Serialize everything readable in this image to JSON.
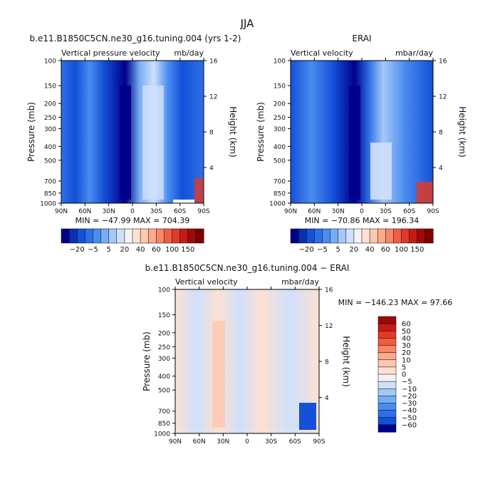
{
  "page_title": "JJA",
  "chart_data": [
    {
      "type": "heatmap",
      "title": "b.e11.B1850C5CN.ne30_g16.tuning.004 (yrs 1-2)",
      "subtitle_left": "Vertical pressure velocity",
      "subtitle_right": "mb/day",
      "xlabel": "",
      "ylabel": "Pressure (mb)",
      "y2label": "Height (km)",
      "x_ticks": [
        "90N",
        "60N",
        "30N",
        "0",
        "30S",
        "60S",
        "90S"
      ],
      "y_ticks": [
        "100",
        "150",
        "200",
        "250",
        "300",
        "400",
        "500",
        "700",
        "850",
        "1000"
      ],
      "y2_ticks": [
        "16",
        "12",
        "8",
        "4"
      ],
      "stats": "MIN = −47.99   MAX = 704.39",
      "min": -47.99,
      "max": 704.39,
      "colorbar": {
        "orientation": "horizontal",
        "labels": [
          "−20",
          "−5",
          "5",
          "20",
          "40",
          "60",
          "100",
          "150"
        ],
        "levels": [
          -40,
          -30,
          -20,
          -15,
          -10,
          -5,
          -2,
          2,
          5,
          10,
          20,
          30,
          40,
          50,
          60,
          80,
          100,
          120,
          150
        ],
        "colors": [
          "#00008b",
          "#0a2fb0",
          "#1450d8",
          "#2e6fe8",
          "#4a8cf0",
          "#76aef5",
          "#a6c8f8",
          "#cfe0fb",
          "#f2f2f2",
          "#fde1d2",
          "#fcc8b0",
          "#fbab8c",
          "#f7866a",
          "#ef5e44",
          "#e03a28",
          "#c41c14",
          "#a00a0a",
          "#800000"
        ]
      },
      "series_description": "Time-mean vertical velocity cross-section"
    },
    {
      "type": "heatmap",
      "title": "ERAI",
      "subtitle_left": "Vertical velocity",
      "subtitle_right": "mbar/day",
      "xlabel": "",
      "ylabel": "Pressure (mb)",
      "y2label": "Height (km)",
      "x_ticks": [
        "90N",
        "60N",
        "30N",
        "0",
        "30S",
        "60S",
        "90S"
      ],
      "y_ticks": [
        "100",
        "150",
        "200",
        "250",
        "300",
        "400",
        "500",
        "700",
        "850",
        "1000"
      ],
      "y2_ticks": [
        "16",
        "12",
        "8",
        "4"
      ],
      "stats": "MIN = −70.86   MAX = 196.34",
      "min": -70.86,
      "max": 196.34,
      "colorbar": {
        "orientation": "horizontal",
        "labels": [
          "−20",
          "−5",
          "5",
          "20",
          "40",
          "60",
          "100",
          "150"
        ],
        "colors": [
          "#00008b",
          "#0a2fb0",
          "#1450d8",
          "#2e6fe8",
          "#4a8cf0",
          "#76aef5",
          "#a6c8f8",
          "#cfe0fb",
          "#f2f2f2",
          "#fde1d2",
          "#fcc8b0",
          "#fbab8c",
          "#f7866a",
          "#ef5e44",
          "#e03a28",
          "#c41c14",
          "#a00a0a",
          "#800000"
        ]
      }
    },
    {
      "type": "heatmap",
      "title": "b.e11.B1850C5CN.ne30_g16.tuning.004 − ERAI",
      "subtitle_left": "Vertical velocity",
      "subtitle_right": "mbar/day",
      "xlabel": "",
      "ylabel": "Pressure (mb)",
      "y2label": "Height (km)",
      "x_ticks": [
        "90N",
        "60N",
        "30N",
        "0",
        "30S",
        "60S",
        "90S"
      ],
      "y_ticks": [
        "100",
        "150",
        "200",
        "250",
        "300",
        "400",
        "500",
        "700",
        "850",
        "1000"
      ],
      "y2_ticks": [
        "16",
        "12",
        "8",
        "4"
      ],
      "stats": "MIN = −146.23   MAX =  97.66",
      "min": -146.23,
      "max": 97.66,
      "colorbar": {
        "orientation": "vertical",
        "labels": [
          "60",
          "50",
          "40",
          "30",
          "20",
          "10",
          "5",
          "0",
          "−5",
          "−10",
          "−20",
          "−30",
          "−40",
          "−50",
          "−60"
        ],
        "colors": [
          "#9b0a0a",
          "#c41c14",
          "#e03a28",
          "#f25c3a",
          "#f7866a",
          "#fbab8c",
          "#fcc8b0",
          "#fde1d2",
          "#f2f2f2",
          "#cfe0fb",
          "#a6c8f8",
          "#76aef5",
          "#4a8cf0",
          "#2e6fe8",
          "#1450d8",
          "#00008b"
        ]
      }
    }
  ]
}
